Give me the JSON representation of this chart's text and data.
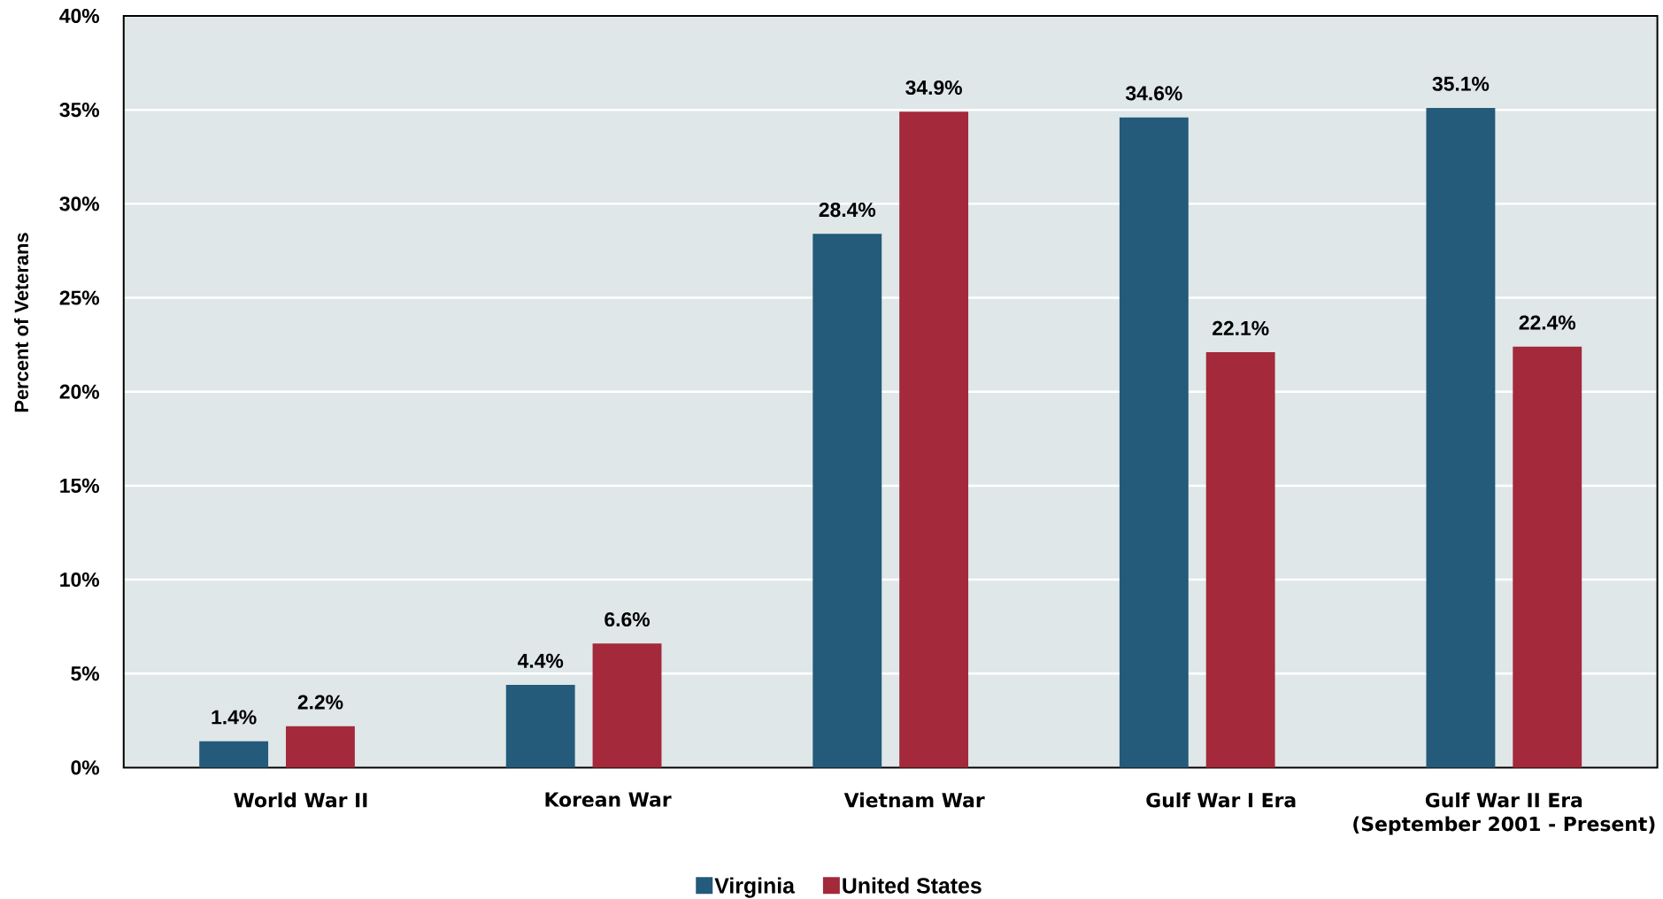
{
  "chart_data": {
    "type": "bar",
    "ylabel": "Percent of Veterans",
    "categories": [
      "World War II",
      "Korean War",
      "Vietnam War",
      "Gulf War I Era",
      "Gulf War II Era (September 2001 - Present)"
    ],
    "series": [
      {
        "name": "Virginia",
        "color": "#245a7a",
        "values": [
          1.4,
          4.4,
          28.4,
          34.6,
          35.1
        ],
        "value_labels": [
          "1.4%",
          "4.4%",
          "28.4%",
          "34.6%",
          "35.1%"
        ]
      },
      {
        "name": "United States",
        "color": "#a3293b",
        "values": [
          2.2,
          6.6,
          34.9,
          22.1,
          22.4
        ],
        "value_labels": [
          "2.2%",
          "6.6%",
          "34.9%",
          "22.1%",
          "22.4%"
        ]
      }
    ],
    "ylim": [
      0,
      40
    ],
    "yticks": [
      {
        "value": 0,
        "label": "0%"
      },
      {
        "value": 5,
        "label": "5%"
      },
      {
        "value": 10,
        "label": "10%"
      },
      {
        "value": 15,
        "label": "15%"
      },
      {
        "value": 20,
        "label": "20%"
      },
      {
        "value": 25,
        "label": "25%"
      },
      {
        "value": 30,
        "label": "30%"
      },
      {
        "value": 35,
        "label": "35%"
      },
      {
        "value": 40,
        "label": "40%"
      }
    ],
    "grid": "y",
    "legend": "bottom"
  }
}
